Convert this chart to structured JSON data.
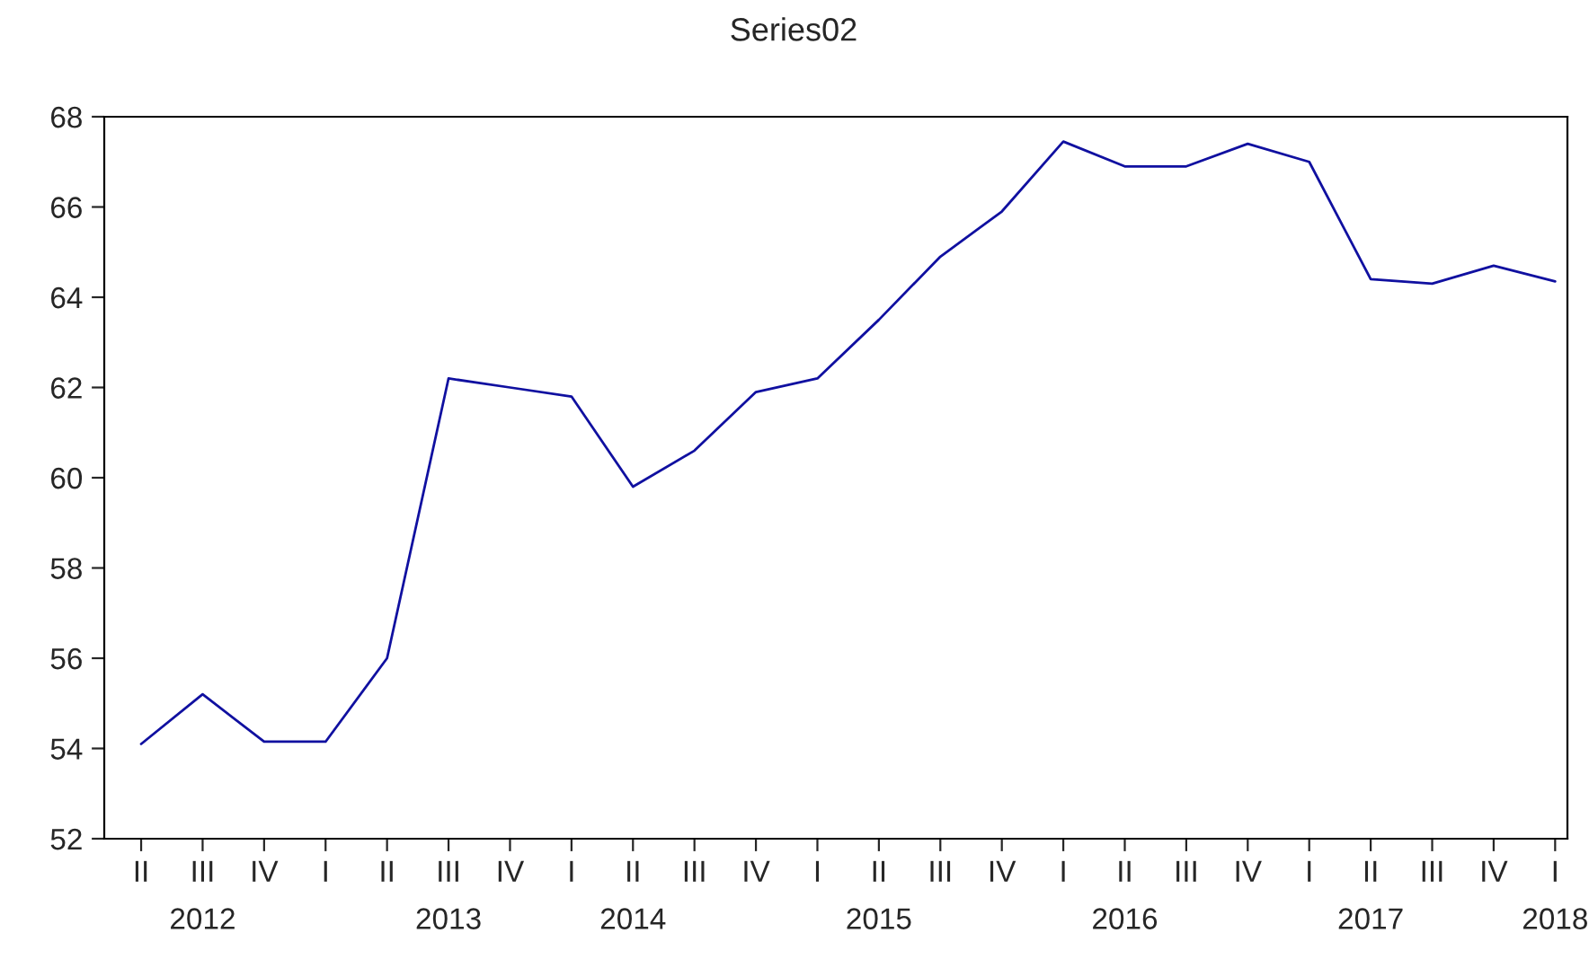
{
  "chart_data": {
    "type": "line",
    "title": "Series02",
    "categories": [
      "II",
      "III\n2012",
      "IV",
      "I",
      "II",
      "III\n2013",
      "IV",
      "I",
      "II\n2014",
      "III",
      "IV",
      "I",
      "II\n2015",
      "III",
      "IV",
      "I",
      "II\n2016",
      "III",
      "IV",
      "I",
      "II\n2017",
      "III",
      "IV",
      "I\n2018"
    ],
    "series": [
      {
        "color": "#1010a0",
        "values": [
          54.1,
          55.2,
          54.15,
          54.15,
          56.0,
          62.2,
          62.0,
          61.8,
          59.8,
          60.6,
          61.9,
          62.2,
          63.5,
          64.9,
          65.9,
          67.45,
          66.9,
          66.9,
          67.4,
          67.0,
          64.4,
          64.3,
          64.7,
          64.35
        ]
      }
    ],
    "ylim": [
      52,
      68
    ],
    "yticks": [
      52,
      54,
      56,
      58,
      60,
      62,
      64,
      66,
      68
    ],
    "grid": false,
    "legend": false,
    "marker": "none",
    "line_style": "solid"
  }
}
